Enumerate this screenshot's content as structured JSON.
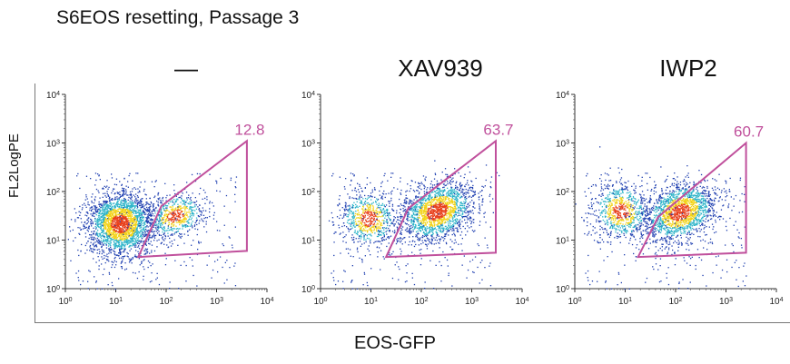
{
  "figure": {
    "title": "S6EOS resetting, Passage 3",
    "xlabel": "EOS-GFP",
    "ylabel": "FL2LogPE"
  },
  "colors": {
    "gate": "#c0509c",
    "density_low": "#1f3fb0",
    "density_mid": "#2bb3c8",
    "density_high": "#f2d318",
    "density_peak": "#e8401c"
  },
  "chart_data": [
    {
      "type": "scatter",
      "subtype": "flow-cytometry-density",
      "title": "—",
      "xscale": "log",
      "yscale": "log",
      "xlim": [
        1,
        10000
      ],
      "ylim": [
        1,
        10000
      ],
      "xticks": [
        "10^0",
        "10^1",
        "10^2",
        "10^3",
        "10^4"
      ],
      "yticks": [
        "10^0",
        "10^1",
        "10^2",
        "10^3",
        "10^4"
      ],
      "gate_percent": "12.8",
      "gate_polygon": [
        [
          28,
          4.5
        ],
        [
          4000,
          6
        ],
        [
          4000,
          1100
        ],
        [
          80,
          50
        ]
      ],
      "populations": [
        {
          "cx": 12,
          "cy": 22,
          "sx": 0.33,
          "sy": 0.33,
          "rot": 40,
          "n": 2400
        },
        {
          "cx": 150,
          "cy": 32,
          "sx": 0.3,
          "sy": 0.22,
          "rot": 25,
          "n": 600
        }
      ]
    },
    {
      "type": "scatter",
      "subtype": "flow-cytometry-density",
      "title": "XAV939",
      "xscale": "log",
      "yscale": "log",
      "xlim": [
        1,
        10000
      ],
      "ylim": [
        1,
        10000
      ],
      "xticks": [
        "10^0",
        "10^1",
        "10^2",
        "10^3",
        "10^4"
      ],
      "yticks": [
        "10^0",
        "10^1",
        "10^2",
        "10^3",
        "10^4"
      ],
      "gate_percent": "63.7",
      "gate_polygon": [
        [
          20,
          4.5
        ],
        [
          3000,
          5.5
        ],
        [
          3000,
          1100
        ],
        [
          55,
          45
        ]
      ],
      "populations": [
        {
          "cx": 9,
          "cy": 28,
          "sx": 0.28,
          "sy": 0.3,
          "rot": 40,
          "n": 700
        },
        {
          "cx": 200,
          "cy": 40,
          "sx": 0.4,
          "sy": 0.28,
          "rot": 30,
          "n": 1800
        }
      ]
    },
    {
      "type": "scatter",
      "subtype": "flow-cytometry-density",
      "title": "IWP2",
      "xscale": "log",
      "yscale": "log",
      "xlim": [
        1,
        10000
      ],
      "ylim": [
        1,
        10000
      ],
      "xticks": [
        "10^0",
        "10^1",
        "10^2",
        "10^3",
        "10^4"
      ],
      "yticks": [
        "10^0",
        "10^1",
        "10^2",
        "10^3",
        "10^4"
      ],
      "gate_percent": "60.7",
      "gate_polygon": [
        [
          18,
          4.5
        ],
        [
          2500,
          5.5
        ],
        [
          2500,
          1000
        ],
        [
          45,
          30
        ]
      ],
      "populations": [
        {
          "cx": 8,
          "cy": 40,
          "sx": 0.28,
          "sy": 0.3,
          "rot": 40,
          "n": 750
        },
        {
          "cx": 120,
          "cy": 38,
          "sx": 0.38,
          "sy": 0.28,
          "rot": 30,
          "n": 1700
        }
      ]
    }
  ]
}
